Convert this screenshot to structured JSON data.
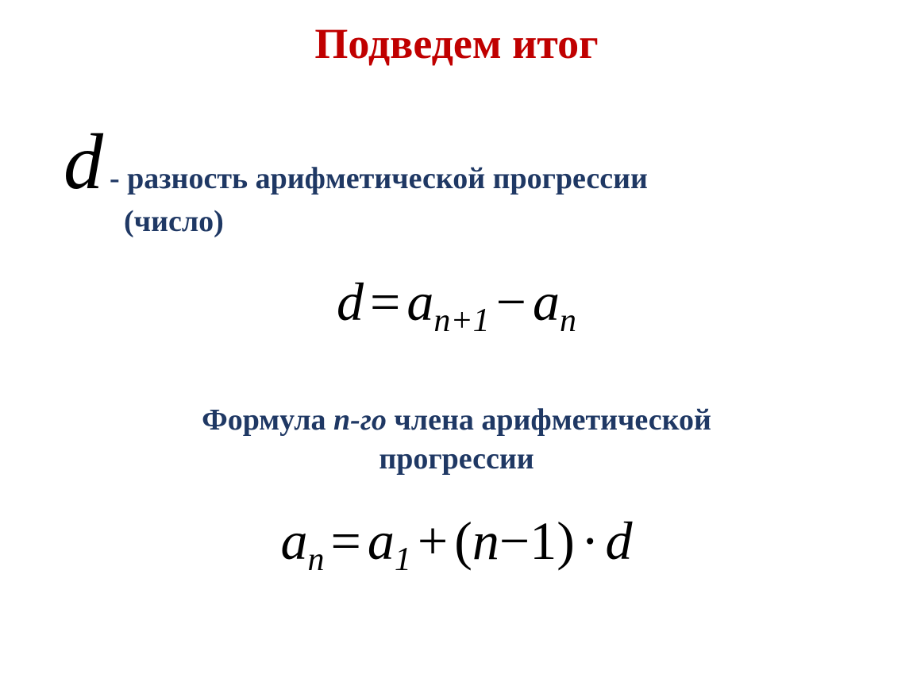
{
  "title": "Подведем итог",
  "definition": {
    "symbol": "d",
    "text_line1": "- разность арифметической прогрессии",
    "text_line2": "(число)"
  },
  "formula1": {
    "d": "d",
    "eq": "=",
    "a1": "a",
    "sub1": "n+1",
    "minus": "−",
    "a2": "a",
    "sub2": "n"
  },
  "caption": {
    "part1": "Формула ",
    "ital": "n-го",
    "part2": " члена арифметической",
    "line2": "прогрессии"
  },
  "formula2": {
    "a1": "a",
    "sub1": "n",
    "eq": "=",
    "a2": "a",
    "sub2": "1",
    "plus": "+",
    "lparen": "(",
    "n": "n",
    "minus": "−",
    "one": "1",
    "rparen": ")",
    "dot": "·",
    "d": "d"
  },
  "colors": {
    "title": "#c00000",
    "text": "#1f3864",
    "formula": "#000000",
    "background": "#ffffff"
  },
  "fonts": {
    "title_size": 54,
    "body_size": 38,
    "formula_size": 68,
    "subscript_size": 42,
    "symbol_d_size": 100
  }
}
